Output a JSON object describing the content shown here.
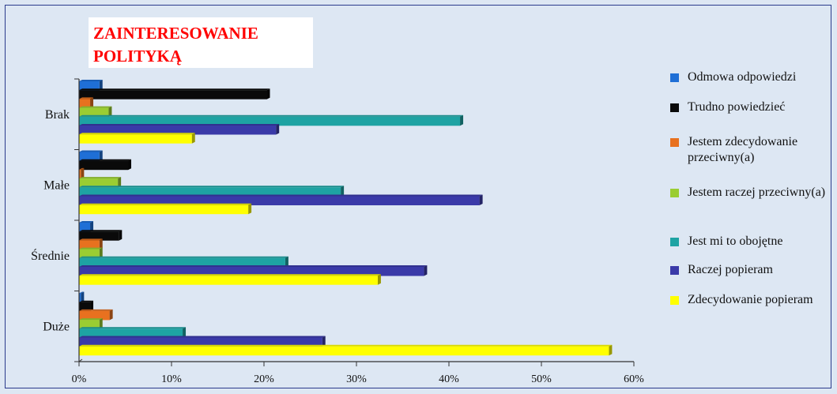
{
  "chart_data": {
    "type": "bar",
    "orientation": "horizontal",
    "title": "ZAINTERESOWANIE POLITYKĄ",
    "categories": [
      "Brak",
      "Małe",
      "Średnie",
      "Duże"
    ],
    "series": [
      {
        "name": "Odmowa odpowiedzi",
        "color": "#1f6fd6",
        "values": [
          2.2,
          2.2,
          1.2,
          0.2
        ]
      },
      {
        "name": "Trudno powiedzieć",
        "color": "#0a0a0a",
        "values": [
          20.3,
          5.3,
          4.3,
          1.2
        ]
      },
      {
        "name": "Jestem zdecydowanie przeciwny(a)",
        "color": "#e8711f",
        "values": [
          1.2,
          0.2,
          2.2,
          3.3
        ]
      },
      {
        "name": "Jestem raczej przeciwny(a)",
        "color": "#9acd32",
        "values": [
          3.2,
          4.2,
          2.2,
          2.2
        ]
      },
      {
        "name": "Jest mi to obojętne",
        "color": "#1ea3a3",
        "values": [
          41.2,
          28.3,
          22.3,
          11.2
        ]
      },
      {
        "name": "Raczej popieram",
        "color": "#3a3aa8",
        "values": [
          21.3,
          43.3,
          37.3,
          26.3
        ]
      },
      {
        "name": "Zdecydowanie popieram",
        "color": "#ffff00",
        "values": [
          12.2,
          18.3,
          32.3,
          57.3
        ]
      }
    ],
    "xlim": [
      0,
      60
    ],
    "xticks": [
      "0%",
      "10%",
      "20%",
      "30%",
      "40%",
      "50%",
      "60%"
    ],
    "legend_position": "right",
    "grid": false
  }
}
